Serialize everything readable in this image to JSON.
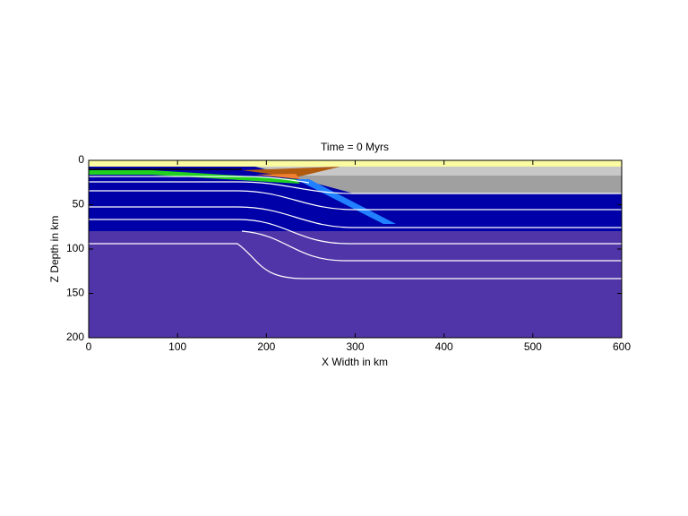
{
  "chart_data": {
    "type": "field",
    "title": "Time = 0 Myrs",
    "x_label": "X Width in km",
    "y_label": "Z Depth in km",
    "xlim": [
      0,
      600
    ],
    "ylim": [
      0,
      200
    ],
    "xticks": [
      0,
      100,
      200,
      300,
      400,
      500,
      600
    ],
    "yticks": [
      0,
      50,
      100,
      150,
      200
    ],
    "y_inverted": true
  }
}
